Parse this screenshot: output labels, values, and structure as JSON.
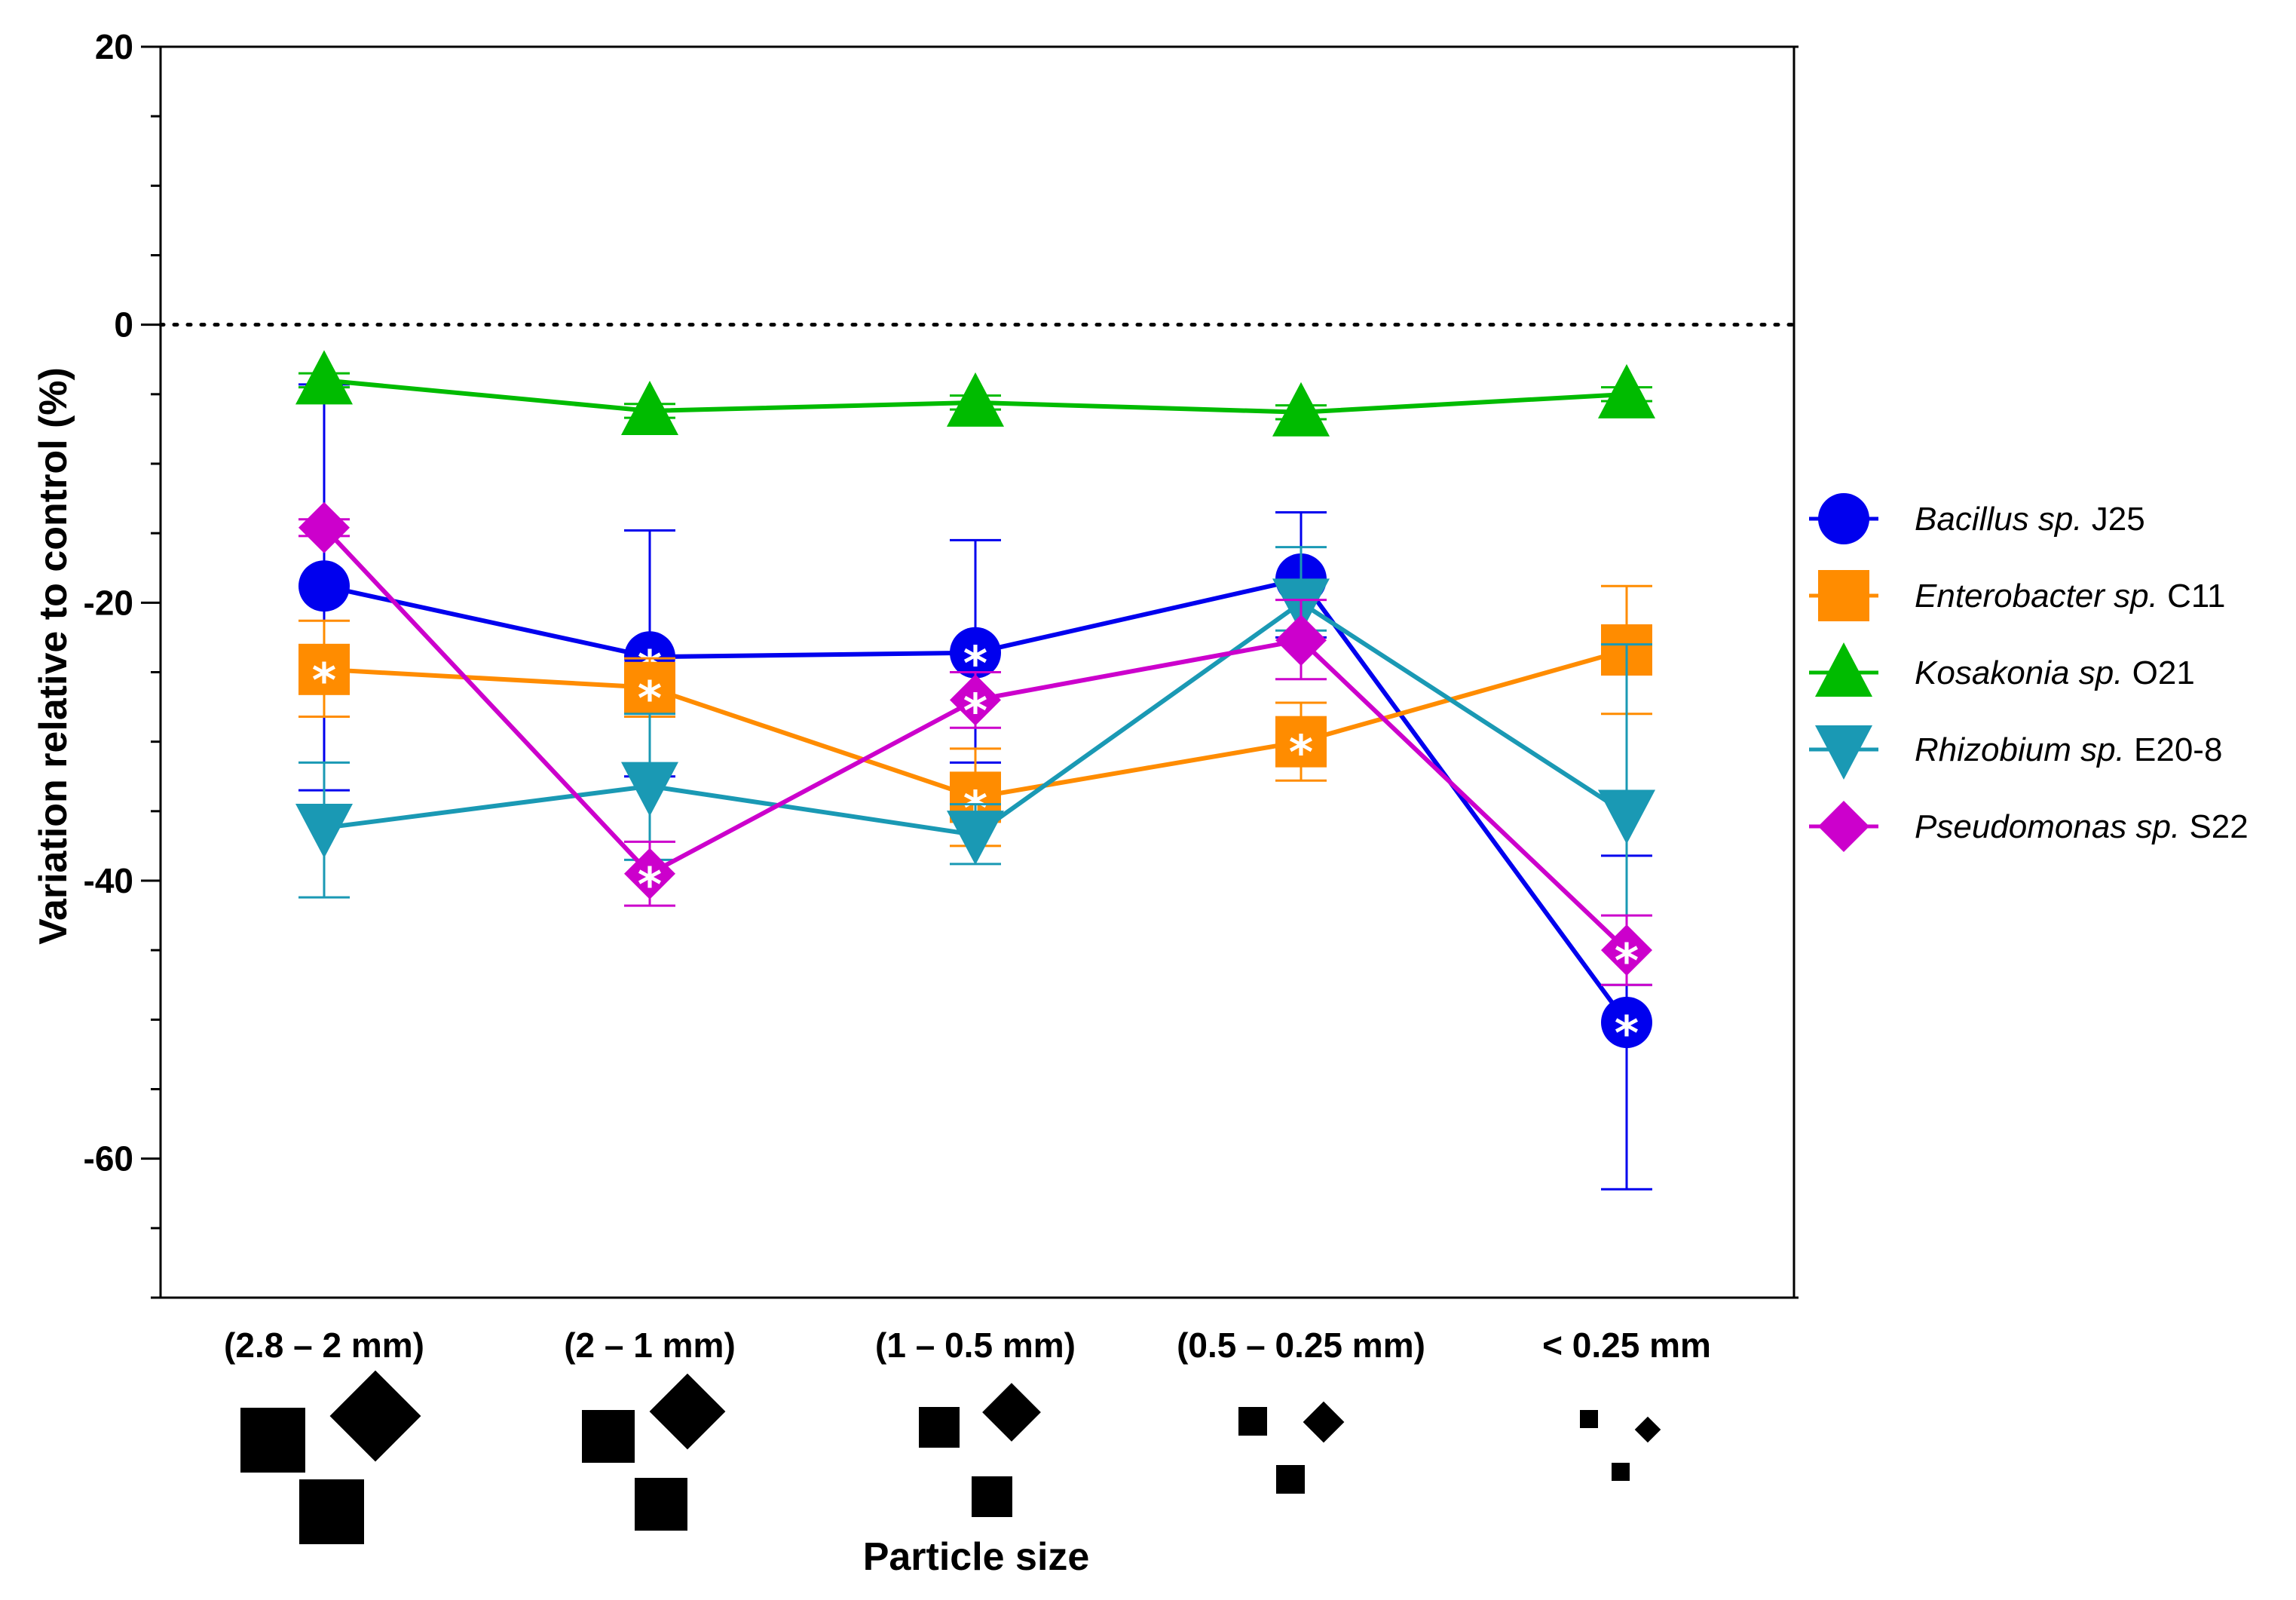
{
  "chart_data": {
    "type": "line",
    "title": "",
    "xlabel": "Particle size",
    "ylabel": "Variation relative to control (%)",
    "ylim": [
      -70,
      20
    ],
    "yticks": [
      20,
      0,
      -20,
      -40,
      -60
    ],
    "reference_line": 0,
    "categories": [
      "(2.8 – 2 mm)",
      "(2 – 1 mm)",
      "(1 – 0.5 mm)",
      "(0.5 – 0.25 mm)",
      "< 0.25 mm"
    ],
    "series": [
      {
        "name_italic": "Bacillus sp.",
        "name_plain": "J25",
        "color": "#0000ee",
        "marker": "circle",
        "values": [
          -18.8,
          -23.9,
          -23.6,
          -18.3,
          -50.2
        ],
        "err_low": [
          -33.5,
          -32.5,
          -31.5,
          -22.5,
          -62.2
        ],
        "err_high": [
          -4.3,
          -14.8,
          -15.5,
          -13.5,
          -38.2
        ],
        "significant": [
          false,
          true,
          true,
          false,
          true
        ]
      },
      {
        "name_italic": "Enterobacter sp.",
        "name_plain": "C11",
        "color": "#ff8c00",
        "marker": "square",
        "values": [
          -24.8,
          -26.1,
          -34.0,
          -30.0,
          -23.4
        ],
        "err_low": [
          -28.2,
          -28.2,
          -37.5,
          -32.8,
          -28.0
        ],
        "err_high": [
          -21.3,
          -24.0,
          -30.5,
          -27.2,
          -18.8
        ],
        "significant": [
          true,
          true,
          true,
          true,
          false
        ]
      },
      {
        "name_italic": "Kosakonia sp.",
        "name_plain": "O21",
        "color": "#00bb00",
        "marker": "triangle-up",
        "values": [
          -4.0,
          -6.2,
          -5.6,
          -6.3,
          -5.0
        ],
        "err_low": [
          -4.5,
          -6.7,
          -6.1,
          -6.8,
          -5.5
        ],
        "err_high": [
          -3.5,
          -5.7,
          -5.1,
          -5.8,
          -4.5
        ],
        "significant": [
          false,
          false,
          false,
          false,
          false
        ]
      },
      {
        "name_italic": "Rhizobium sp.",
        "name_plain": "E20-8",
        "color": "#1a99b4",
        "marker": "triangle-down",
        "values": [
          -36.2,
          -33.2,
          -36.7,
          -20.0,
          -35.2
        ],
        "err_low": [
          -41.2,
          -38.5,
          -38.8,
          -22.0,
          -47.5
        ],
        "err_high": [
          -31.5,
          -28.0,
          -34.5,
          -16.0,
          -23.0
        ],
        "significant": [
          false,
          false,
          false,
          false,
          false
        ]
      },
      {
        "name_italic": "Pseudomonas sp.",
        "name_plain": "S22",
        "color": "#cc00cc",
        "marker": "diamond",
        "values": [
          -14.6,
          -39.5,
          -27.0,
          -22.7,
          -45.0
        ],
        "err_low": [
          -15.2,
          -41.8,
          -29.0,
          -25.5,
          -47.5
        ],
        "err_high": [
          -14.0,
          -37.2,
          -25.0,
          -19.8,
          -42.5
        ],
        "significant": [
          false,
          true,
          true,
          false,
          true
        ]
      }
    ]
  }
}
